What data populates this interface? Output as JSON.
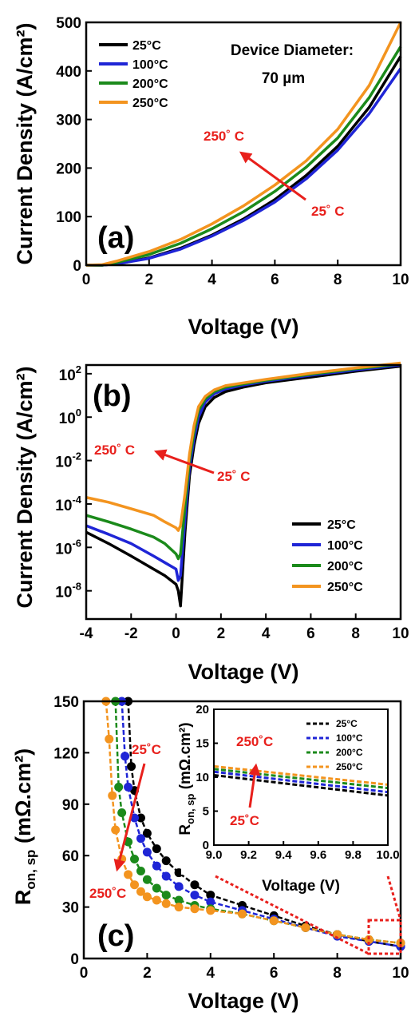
{
  "colors": {
    "t25": "#000000",
    "t100": "#1f25d6",
    "t200": "#1b8a1b",
    "t250": "#f3941f",
    "annotation": "#e8201c"
  },
  "chart_data": [
    {
      "type": "line",
      "panel_label": "(a)",
      "xlabel": "Voltage (V)",
      "ylabel": "Current Density (A/cm²)",
      "xlim": [
        0,
        10
      ],
      "ylim": [
        0,
        500
      ],
      "xticks": [
        "0",
        "2",
        "4",
        "6",
        "8",
        "10"
      ],
      "yticks": [
        "0",
        "100",
        "200",
        "300",
        "400",
        "500"
      ],
      "legend": {
        "placement": "top-left",
        "entries": [
          "25°C",
          "100°C",
          "200°C",
          "250°C"
        ]
      },
      "note": {
        "line1": "Device Diameter:",
        "line2": "70 µm"
      },
      "arrow": {
        "from_label": "25˚ C",
        "to_label": "250˚ C"
      },
      "series": [
        {
          "name": "25°C",
          "x": [
            0,
            0.5,
            1,
            2,
            3,
            4,
            5,
            6,
            7,
            8,
            9,
            10
          ],
          "values": [
            0,
            0,
            3,
            15,
            35,
            62,
            95,
            135,
            185,
            245,
            325,
            430
          ]
        },
        {
          "name": "100°C",
          "x": [
            0,
            0.5,
            1,
            2,
            3,
            4,
            5,
            6,
            7,
            8,
            9,
            10
          ],
          "values": [
            0,
            0,
            3,
            14,
            33,
            60,
            92,
            130,
            178,
            237,
            312,
            405
          ]
        },
        {
          "name": "200°C",
          "x": [
            0,
            0.5,
            1,
            2,
            3,
            4,
            5,
            6,
            7,
            8,
            9,
            10
          ],
          "values": [
            0,
            0,
            6,
            22,
            45,
            75,
            110,
            152,
            202,
            262,
            345,
            450
          ]
        },
        {
          "name": "250°C",
          "x": [
            0,
            0.5,
            1,
            2,
            3,
            4,
            5,
            6,
            7,
            8,
            9,
            10
          ],
          "values": [
            0,
            1,
            9,
            28,
            53,
            85,
            122,
            165,
            215,
            280,
            370,
            500
          ]
        }
      ]
    },
    {
      "type": "line",
      "panel_label": "(b)",
      "xlabel": "Voltage (V)",
      "ylabel": "Current Density (A/cm²)",
      "xlim": [
        -4,
        10
      ],
      "ylim_log10": [
        -9.3,
        2.4
      ],
      "yscale": "log",
      "xticks": [
        "-4",
        "-2",
        "0",
        "2",
        "4",
        "6",
        "8",
        "10"
      ],
      "yticks": [
        {
          "base": "10",
          "exp": "2"
        },
        {
          "base": "10",
          "exp": "0"
        },
        {
          "base": "10",
          "exp": "-2"
        },
        {
          "base": "10",
          "exp": "-4"
        },
        {
          "base": "10",
          "exp": "-6"
        },
        {
          "base": "10",
          "exp": "-8"
        }
      ],
      "legend": {
        "placement": "bottom-right",
        "entries": [
          "25°C",
          "100°C",
          "200°C",
          "250°C"
        ]
      },
      "arrow": {
        "from_label": "25˚ C",
        "to_label": "250˚ C"
      },
      "series": [
        {
          "name": "25°C",
          "x": [
            -4,
            -3,
            -2,
            -1,
            -0.5,
            0,
            0.1,
            0.2,
            0.4,
            0.6,
            0.8,
            1.0,
            1.3,
            1.7,
            2.2,
            3,
            4,
            6,
            8,
            10
          ],
          "values": [
            5e-06,
            1.5e-06,
            4e-07,
            1e-07,
            5e-08,
            2e-08,
            1e-08,
            2e-09,
            5e-06,
            0.002,
            0.05,
            0.5,
            3,
            8,
            15,
            24,
            38,
            70,
            130,
            220
          ]
        },
        {
          "name": "100°C",
          "x": [
            -4,
            -3,
            -2,
            -1,
            -0.5,
            0,
            0.1,
            0.2,
            0.4,
            0.6,
            0.8,
            1.0,
            1.3,
            1.7,
            2.2,
            3,
            4,
            6,
            8,
            10
          ],
          "values": [
            1e-05,
            4e-06,
            1.5e-06,
            4e-07,
            2e-07,
            1e-07,
            3e-08,
            5e-08,
            2e-05,
            0.005,
            0.1,
            1,
            5,
            12,
            20,
            30,
            45,
            85,
            150,
            250
          ]
        },
        {
          "name": "200°C",
          "x": [
            -4,
            -3,
            -2,
            -1,
            -0.5,
            0,
            0.1,
            0.2,
            0.4,
            0.6,
            0.8,
            1.0,
            1.3,
            1.7,
            2.2,
            3,
            4,
            6,
            8,
            10
          ],
          "values": [
            3e-05,
            1.5e-05,
            7e-06,
            3e-06,
            1.5e-06,
            5e-07,
            3e-07,
            5e-07,
            8e-05,
            0.01,
            0.2,
            2,
            7,
            15,
            24,
            34,
            50,
            95,
            170,
            280
          ]
        },
        {
          "name": "250°C",
          "x": [
            -4,
            -3,
            -2,
            -1,
            -0.5,
            0,
            0.1,
            0.2,
            0.4,
            0.6,
            0.8,
            1.0,
            1.3,
            1.7,
            2.2,
            3,
            4,
            6,
            8,
            10
          ],
          "values": [
            0.0002,
            0.00012,
            6e-05,
            3e-05,
            1.5e-05,
            8e-06,
            6e-06,
            1e-05,
            0.0003,
            0.02,
            0.4,
            3,
            9,
            18,
            28,
            38,
            55,
            105,
            185,
            310
          ]
        }
      ]
    },
    {
      "type": "scatter",
      "panel_label": "(c)",
      "xlabel": "Voltage (V)",
      "ylabel": {
        "main": "R",
        "sub": "on, sp",
        "unit": " (mΩ.cm²)"
      },
      "xlim": [
        0,
        10
      ],
      "ylim": [
        0,
        150
      ],
      "xticks": [
        "0",
        "2",
        "4",
        "6",
        "8",
        "10"
      ],
      "yticks": [
        "0",
        "30",
        "60",
        "90",
        "120",
        "150"
      ],
      "arrow": {
        "from_label": "25˚C",
        "to_label": "250˚C"
      },
      "series": [
        {
          "name": "25°C",
          "x": [
            1.4,
            1.5,
            1.6,
            1.8,
            2.0,
            2.3,
            2.6,
            3.0,
            3.5,
            4.0,
            5,
            6,
            7,
            8,
            9,
            10
          ],
          "values": [
            150,
            112,
            98,
            82,
            73,
            64,
            57,
            50,
            43,
            37,
            31,
            25,
            19,
            14,
            10,
            7
          ]
        },
        {
          "name": "100°C",
          "x": [
            1.2,
            1.3,
            1.4,
            1.6,
            1.8,
            2.0,
            2.3,
            2.6,
            3.0,
            3.5,
            4.0,
            5,
            6,
            7,
            8,
            9,
            10
          ],
          "values": [
            150,
            118,
            100,
            82,
            70,
            62,
            54,
            48,
            42,
            37,
            33,
            28,
            23,
            18,
            13,
            10,
            7
          ]
        },
        {
          "name": "200°C",
          "x": [
            1.0,
            1.1,
            1.2,
            1.4,
            1.6,
            1.8,
            2.0,
            2.3,
            2.6,
            3.0,
            3.5,
            4.0,
            5,
            6,
            7,
            8,
            9,
            10
          ],
          "values": [
            150,
            100,
            85,
            68,
            58,
            51,
            46,
            41,
            37,
            34,
            31,
            29,
            26,
            22,
            18,
            14,
            11,
            9
          ]
        },
        {
          "name": "250°C",
          "x": [
            0.7,
            0.8,
            0.9,
            1.0,
            1.2,
            1.4,
            1.6,
            1.8,
            2.0,
            2.3,
            2.6,
            3.0,
            3.5,
            4.0,
            5,
            6,
            7,
            8,
            9,
            10
          ],
          "values": [
            150,
            128,
            95,
            75,
            58,
            49,
            43,
            39,
            36,
            34,
            32,
            30,
            29,
            28,
            26,
            22,
            18,
            14,
            11,
            9
          ]
        }
      ],
      "inset": {
        "type": "line",
        "xlabel": "Voltage (V)",
        "ylabel": {
          "main": "R",
          "sub": "on, sp",
          "unit": " (mΩ.cm²)"
        },
        "xlim": [
          9.0,
          10.0
        ],
        "ylim": [
          0,
          20
        ],
        "xticks": [
          "9.0",
          "9.2",
          "9.4",
          "9.6",
          "9.8",
          "10.0"
        ],
        "yticks": [
          "0",
          "5",
          "10",
          "15",
          "20"
        ],
        "legend": {
          "placement": "top-right",
          "entries": [
            "25°C",
            "100°C",
            "200°C",
            "250°C"
          ]
        },
        "arrow": {
          "from_label": "25˚C",
          "to_label": "250˚C"
        },
        "series": [
          {
            "name": "25°C",
            "x": [
              9.0,
              10.0
            ],
            "values": [
              10.3,
              7.3
            ]
          },
          {
            "name": "100°C",
            "x": [
              9.0,
              10.0
            ],
            "values": [
              10.8,
              7.8
            ]
          },
          {
            "name": "200°C",
            "x": [
              9.0,
              10.0
            ],
            "values": [
              11.2,
              8.4
            ]
          },
          {
            "name": "250°C",
            "x": [
              9.0,
              10.0
            ],
            "values": [
              11.6,
              8.9
            ]
          }
        ]
      }
    }
  ]
}
